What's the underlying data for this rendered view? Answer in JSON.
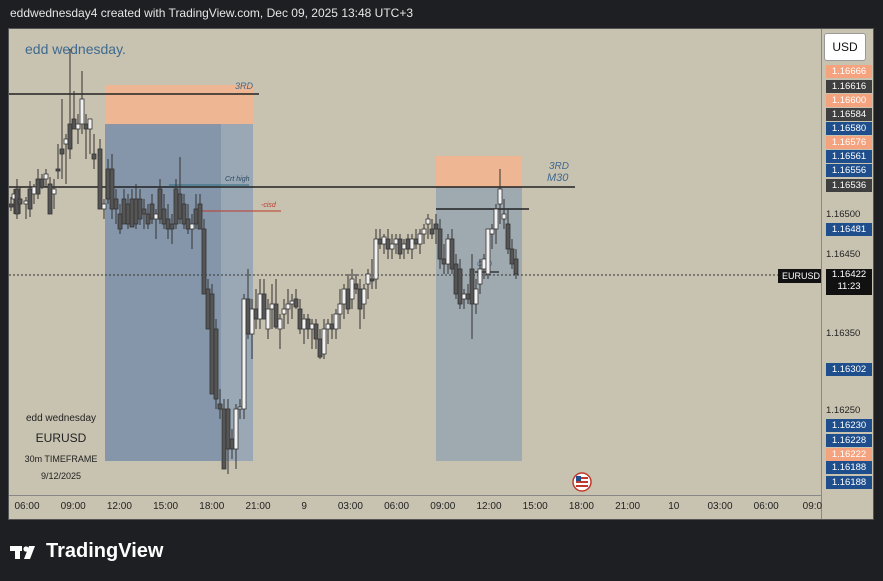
{
  "header": "eddwednesday4 created with TradingView.com, Dec 09, 2025 13:48 UTC+3",
  "watermark": "edd wednesday.",
  "currency_button": "USD",
  "info_block": {
    "author": "edd wednesday",
    "symbol": "EURUSD",
    "timeframe": "30m TIMEFRAME",
    "date": "9/12/2025"
  },
  "annotations": {
    "left_box_label": "3RD",
    "right_box_label_1": "3RD",
    "right_box_label_2": "M30",
    "crt_high": "Crt high",
    "cisd": "-cisd",
    "crd": "CRD"
  },
  "price_tags": [
    {
      "v": "1.16666",
      "color": "#f4a37e"
    },
    {
      "v": "1.16616",
      "color": "#3f3f3f"
    },
    {
      "v": "1.16600",
      "color": "#f4a37e"
    },
    {
      "v": "1.16584",
      "color": "#3f3f3f"
    },
    {
      "v": "1.16580",
      "color": "#1e4e8c"
    },
    {
      "v": "1.16576",
      "color": "#f4a37e"
    },
    {
      "v": "1.16561",
      "color": "#1e4e8c"
    },
    {
      "v": "1.16556",
      "color": "#1e4e8c"
    },
    {
      "v": "1.16536",
      "color": "#3f3f3f"
    },
    {
      "v": "1.16481",
      "color": "#1e4e8c"
    },
    {
      "v": "1.16302",
      "color": "#1e4e8c"
    },
    {
      "v": "1.16230",
      "color": "#1e4e8c"
    },
    {
      "v": "1.16228",
      "color": "#1e4e8c"
    },
    {
      "v": "1.16222",
      "color": "#f4a37e"
    },
    {
      "v": "1.16188",
      "color": "#1e4e8c"
    },
    {
      "v": "1.16188",
      "color": "#1e4e8c"
    }
  ],
  "price_ticks": [
    "1.16500",
    "1.16450",
    "1.16350",
    "1.16250"
  ],
  "current": {
    "symbol": "EURUSD",
    "price": "1.16422",
    "countdown": "11:23"
  },
  "time_labels": [
    "06:00",
    "09:00",
    "12:00",
    "15:00",
    "18:00",
    "21:00",
    "9",
    "03:00",
    "06:00",
    "09:00",
    "12:00",
    "15:00",
    "18:00",
    "21:00",
    "10",
    "03:00",
    "06:00",
    "09:0"
  ],
  "brand": "TradingView"
}
